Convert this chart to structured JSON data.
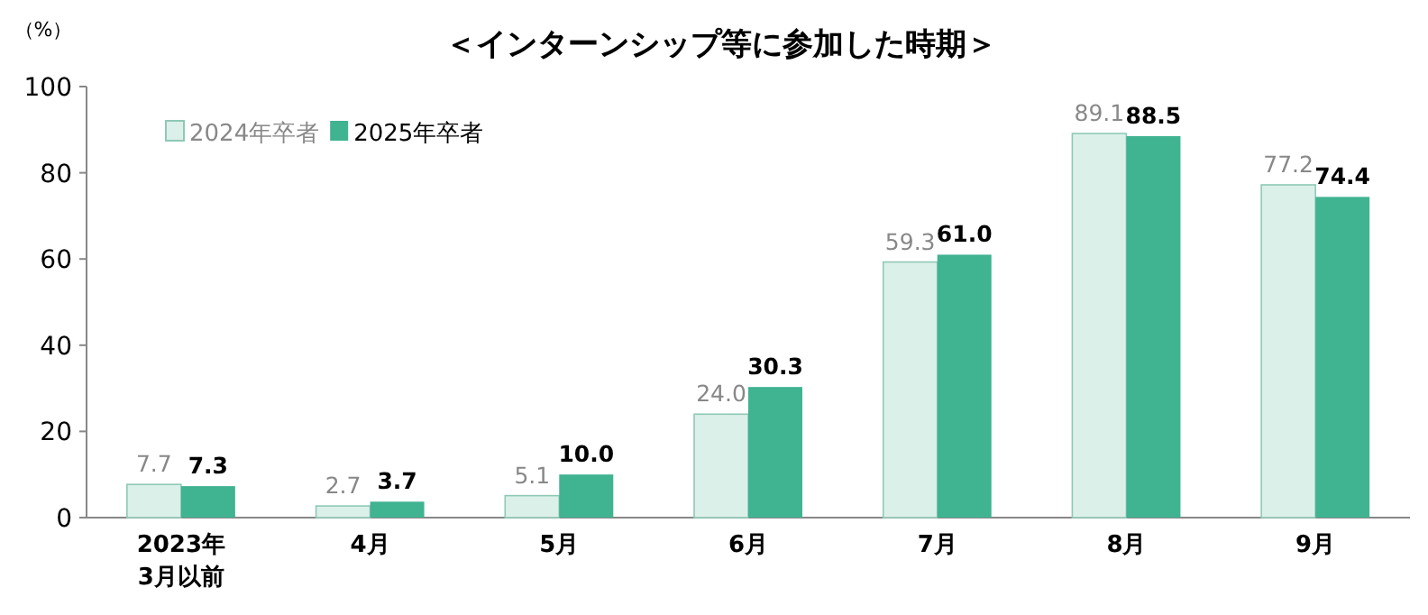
{
  "chart_data": {
    "type": "bar",
    "title": "＜インターンシップ等に参加した時期＞",
    "ylabel": "（%）",
    "categories": [
      "2023年\n3月以前",
      "4月",
      "5月",
      "6月",
      "7月",
      "8月",
      "9月"
    ],
    "series": [
      {
        "name": "2024年卒者",
        "color": "#dcf0ea",
        "values": [
          7.7,
          2.7,
          5.1,
          24.0,
          59.3,
          89.1,
          77.2
        ],
        "value_labels": [
          "7.7",
          "2.7",
          "5.1",
          "24.0",
          "59.3",
          "89.1",
          "77.2"
        ]
      },
      {
        "name": "2025年卒者",
        "color": "#40b391",
        "values": [
          7.3,
          3.7,
          10.0,
          30.3,
          61.0,
          88.5,
          74.4
        ],
        "value_labels": [
          "7.3",
          "3.7",
          "10.0",
          "30.3",
          "61.0",
          "88.5",
          "74.4"
        ]
      }
    ],
    "ylim": [
      0,
      100
    ],
    "yticks": [
      0,
      20,
      40,
      60,
      80,
      100
    ],
    "legend": "top left",
    "grid": false
  }
}
